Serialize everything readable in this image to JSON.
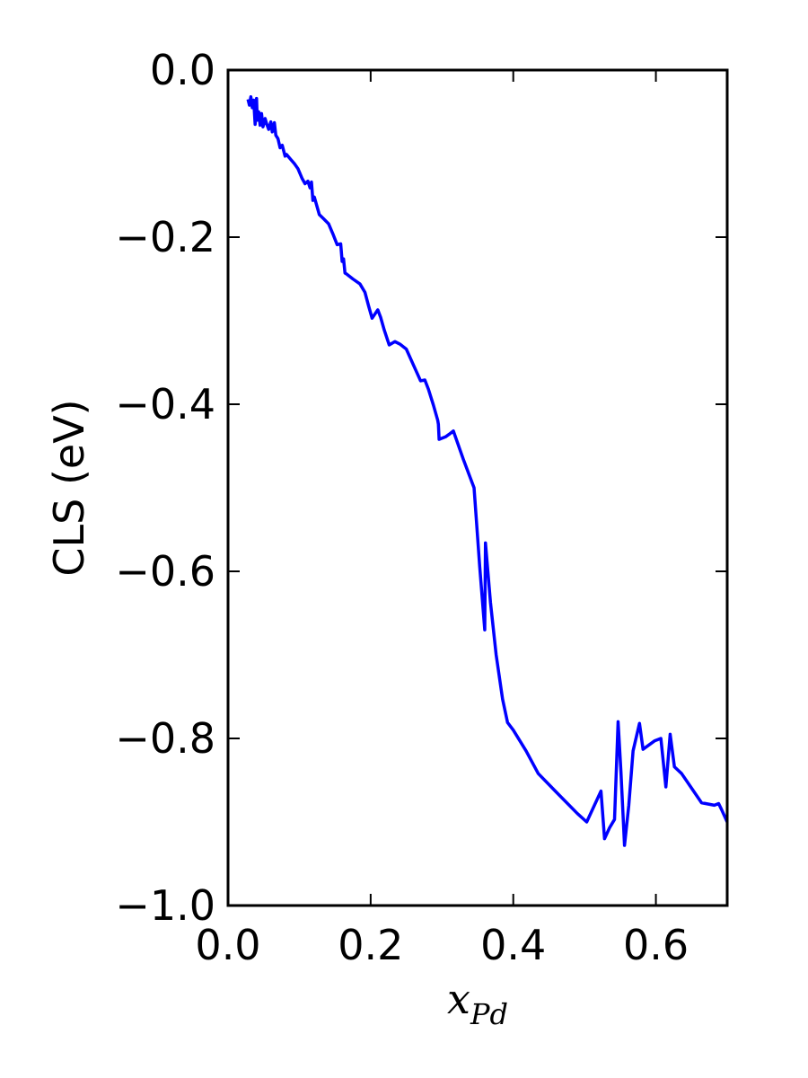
{
  "chart_data": {
    "type": "line",
    "xlabel": {
      "main": "x",
      "subscript": "Pd"
    },
    "ylabel": "CLS (eV)",
    "xlim": [
      0.0,
      0.7
    ],
    "ylim": [
      -1.0,
      0.0
    ],
    "xticks": [
      {
        "value": 0.0,
        "label": "0.0"
      },
      {
        "value": 0.2,
        "label": "0.2"
      },
      {
        "value": 0.4,
        "label": "0.4"
      },
      {
        "value": 0.6,
        "label": "0.6"
      }
    ],
    "yticks": [
      {
        "value": 0.0,
        "label": "0.0"
      },
      {
        "value": -0.2,
        "label": "−0.2"
      },
      {
        "value": -0.4,
        "label": "−0.4"
      },
      {
        "value": -0.6,
        "label": "−0.6"
      },
      {
        "value": -0.8,
        "label": "−0.8"
      },
      {
        "value": -1.0,
        "label": "−1.0"
      }
    ],
    "grid": false,
    "line_color": "#0000ff",
    "series": [
      {
        "x": [
          0.028,
          0.03,
          0.032,
          0.034,
          0.036,
          0.038,
          0.04,
          0.041,
          0.043,
          0.045,
          0.047,
          0.049,
          0.052,
          0.054,
          0.057,
          0.06,
          0.062,
          0.065,
          0.067,
          0.07,
          0.073,
          0.076,
          0.08,
          0.082,
          0.087,
          0.093,
          0.098,
          0.104,
          0.108,
          0.112,
          0.115,
          0.117,
          0.119,
          0.121,
          0.125,
          0.128,
          0.134,
          0.141,
          0.147,
          0.153,
          0.158,
          0.16,
          0.162,
          0.164,
          0.166,
          0.169,
          0.175,
          0.185,
          0.192,
          0.197,
          0.202,
          0.206,
          0.21,
          0.214,
          0.219,
          0.226,
          0.234,
          0.241,
          0.25,
          0.26,
          0.27,
          0.276,
          0.281,
          0.288,
          0.294,
          0.295,
          0.296,
          0.299,
          0.305,
          0.31,
          0.316,
          0.33,
          0.345,
          0.353,
          0.36,
          0.361,
          0.368,
          0.376,
          0.385,
          0.392,
          0.4,
          0.418,
          0.435,
          0.46,
          0.49,
          0.503,
          0.523,
          0.528,
          0.535,
          0.542,
          0.547,
          0.551,
          0.556,
          0.562,
          0.568,
          0.577,
          0.582,
          0.59,
          0.598,
          0.607,
          0.614,
          0.62,
          0.626,
          0.636,
          0.648,
          0.664,
          0.682,
          0.688,
          0.692,
          0.7
        ],
        "y": [
          -0.035,
          -0.042,
          -0.032,
          -0.045,
          -0.036,
          -0.065,
          -0.034,
          -0.06,
          -0.05,
          -0.066,
          -0.052,
          -0.068,
          -0.058,
          -0.064,
          -0.071,
          -0.062,
          -0.074,
          -0.063,
          -0.078,
          -0.082,
          -0.093,
          -0.09,
          -0.103,
          -0.101,
          -0.106,
          -0.112,
          -0.118,
          -0.13,
          -0.136,
          -0.133,
          -0.141,
          -0.134,
          -0.156,
          -0.152,
          -0.164,
          -0.173,
          -0.178,
          -0.184,
          -0.196,
          -0.209,
          -0.208,
          -0.229,
          -0.226,
          -0.243,
          -0.244,
          -0.246,
          -0.25,
          -0.256,
          -0.266,
          -0.282,
          -0.297,
          -0.292,
          -0.287,
          -0.296,
          -0.311,
          -0.329,
          -0.325,
          -0.328,
          -0.334,
          -0.353,
          -0.372,
          -0.371,
          -0.382,
          -0.401,
          -0.419,
          -0.424,
          -0.442,
          -0.441,
          -0.439,
          -0.436,
          -0.432,
          -0.466,
          -0.5,
          -0.595,
          -0.67,
          -0.566,
          -0.637,
          -0.7,
          -0.753,
          -0.781,
          -0.79,
          -0.815,
          -0.842,
          -0.864,
          -0.89,
          -0.9,
          -0.863,
          -0.92,
          -0.907,
          -0.897,
          -0.78,
          -0.84,
          -0.928,
          -0.88,
          -0.815,
          -0.782,
          -0.813,
          -0.808,
          -0.803,
          -0.8,
          -0.858,
          -0.795,
          -0.834,
          -0.842,
          -0.857,
          -0.877,
          -0.88,
          -0.878,
          -0.885,
          -0.9
        ]
      }
    ]
  }
}
